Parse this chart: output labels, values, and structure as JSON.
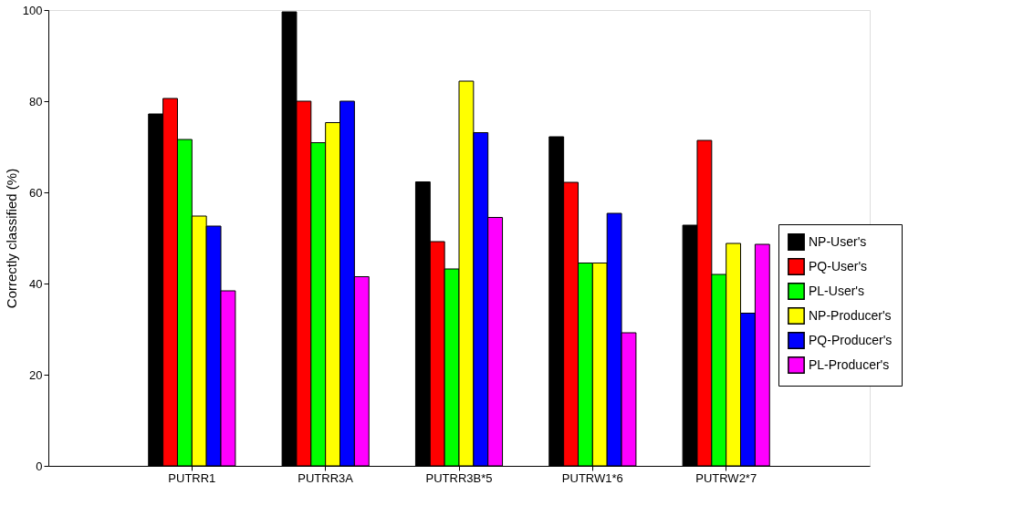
{
  "chart_data": {
    "type": "bar",
    "ylabel": "Correctly classified (%)",
    "categories": [
      "PUTRR1",
      "PUTRR3A",
      "PUTRR3B*5",
      "PUTRW1*6",
      "PUTRW2*7"
    ],
    "series": [
      {
        "name": "NP-User's",
        "color": "#000000",
        "values": [
          77.2,
          99.6,
          62.3,
          72.2,
          52.8
        ]
      },
      {
        "name": "PQ-User's",
        "color": "#ff0000",
        "values": [
          80.6,
          80.0,
          49.2,
          62.2,
          71.4
        ]
      },
      {
        "name": "PL-User's",
        "color": "#00ff00",
        "values": [
          71.6,
          70.9,
          43.2,
          44.5,
          42.0
        ]
      },
      {
        "name": "NP-Producer's",
        "color": "#ffff00",
        "values": [
          54.8,
          75.3,
          84.4,
          44.5,
          48.8
        ]
      },
      {
        "name": "PQ-Producer's",
        "color": "#0000ff",
        "values": [
          52.6,
          80.0,
          73.1,
          55.4,
          33.5
        ]
      },
      {
        "name": "PL-Producer's",
        "color": "#ff00ff",
        "values": [
          38.4,
          41.5,
          54.5,
          29.2,
          48.6
        ]
      }
    ],
    "ylim": [
      0,
      100
    ],
    "yticks": [
      0,
      20,
      40,
      60,
      80,
      100
    ],
    "grid": false,
    "legend": "right"
  }
}
